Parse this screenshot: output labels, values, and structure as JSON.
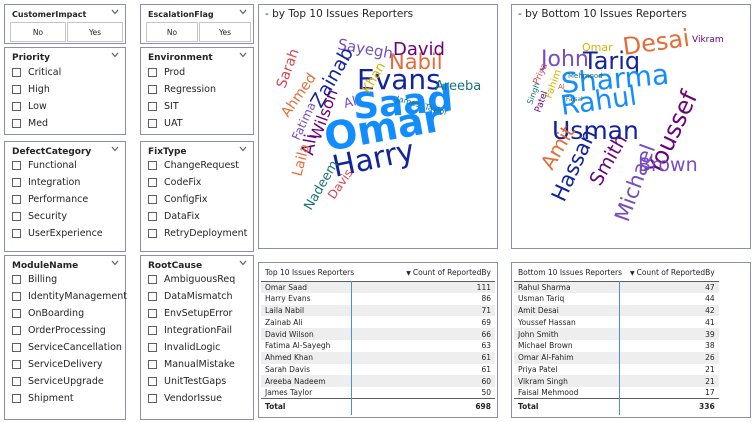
{
  "customer_impact": {
    "title": "CustomerImpact",
    "options": [
      "No",
      "Yes"
    ]
  },
  "escalation_flag": {
    "title": "EscalationFlag",
    "options": [
      "No",
      "Yes"
    ]
  },
  "priority": {
    "title": "Priority",
    "items": [
      "Critical",
      "High",
      "Low",
      "Med"
    ]
  },
  "environment": {
    "title": "Environment",
    "items": [
      "Prod",
      "Regression",
      "SIT",
      "UAT"
    ]
  },
  "defect_category": {
    "title": "DefectCategory",
    "items": [
      "Functional",
      "Integration",
      "Performance",
      "Security",
      "UserExperience"
    ]
  },
  "fix_type": {
    "title": "FixType",
    "items": [
      "ChangeRequest",
      "CodeFix",
      "ConfigFix",
      "DataFix",
      "RetryDeployment"
    ]
  },
  "module_name": {
    "title": "ModuleName",
    "items": [
      "Billing",
      "IdentityManagement",
      "OnBoarding",
      "OrderProcessing",
      "ServiceCancellation",
      "ServiceDelivery",
      "ServiceUpgrade",
      "Shipment"
    ]
  },
  "root_cause": {
    "title": "RootCause",
    "items": [
      "AmbiguousReq",
      "DataMismatch",
      "EnvSetupError",
      "IntegrationFail",
      "InvalidLogic",
      "ManualMistake",
      "UnitTestGaps",
      "VendorIssue"
    ]
  },
  "top_wordcloud": {
    "title": "- by Top 10 Issues Reporters",
    "words": [
      {
        "text": "Saad",
        "color": "#118DFF"
      },
      {
        "text": "Omar",
        "color": "#118DFF"
      },
      {
        "text": "Harry",
        "color": "#12239E"
      },
      {
        "text": "Evans",
        "color": "#12239E"
      },
      {
        "text": "Nabil",
        "color": "#E66C37"
      },
      {
        "text": "David",
        "color": "#6B007B"
      },
      {
        "text": "Sayegh",
        "color": "#744EC2"
      },
      {
        "text": "Zainab",
        "color": "#12239E"
      },
      {
        "text": "Sarah",
        "color": "#D64550"
      },
      {
        "text": "Ahmed",
        "color": "#E66C37"
      },
      {
        "text": "Wilson",
        "color": "#6B007B"
      },
      {
        "text": "Khan",
        "color": "#D9B300"
      },
      {
        "text": "Areeba",
        "color": "#197278"
      },
      {
        "text": "Al",
        "color": "#744EC2"
      },
      {
        "text": "James",
        "color": "#197278"
      },
      {
        "text": "Taylor",
        "color": "#197278"
      },
      {
        "text": "Fatima",
        "color": "#744EC2"
      },
      {
        "text": "Ali",
        "color": "#6B007B"
      },
      {
        "text": "Laila",
        "color": "#E66C37"
      },
      {
        "text": "Nadeem",
        "color": "#197278"
      },
      {
        "text": "Davis",
        "color": "#D64550"
      }
    ]
  },
  "bottom_wordcloud": {
    "title": "- by Bottom 10 Issues Reporters",
    "words": [
      {
        "text": "Desai",
        "color": "#E66C37"
      },
      {
        "text": "Omar",
        "color": "#D9B300"
      },
      {
        "text": "John",
        "color": "#744EC2"
      },
      {
        "text": "Tariq",
        "color": "#12239E"
      },
      {
        "text": "Vikram",
        "color": "#6B007B"
      },
      {
        "text": "Sharma",
        "color": "#118DFF"
      },
      {
        "text": "Rahul",
        "color": "#118DFF"
      },
      {
        "text": "Usman",
        "color": "#12239E"
      },
      {
        "text": "Youssef",
        "color": "#6B007B"
      },
      {
        "text": "Brown",
        "color": "#744EC2"
      },
      {
        "text": "Michael",
        "color": "#744EC2"
      },
      {
        "text": "Smith",
        "color": "#6B007B"
      },
      {
        "text": "Hassan",
        "color": "#12239E"
      },
      {
        "text": "Amit",
        "color": "#E66C37"
      },
      {
        "text": "Priya",
        "color": "#D64550"
      },
      {
        "text": "Fahim",
        "color": "#D9B300"
      },
      {
        "text": "Singh",
        "color": "#197278"
      },
      {
        "text": "Patel",
        "color": "#6B007B"
      },
      {
        "text": "Mehmood",
        "color": "#197278"
      },
      {
        "text": "Faisal",
        "color": "#197278"
      },
      {
        "text": "Al",
        "color": "#D64550"
      }
    ]
  },
  "top_table": {
    "col1": "Top 10 Issues Reporters",
    "col2": "Count of ReportedBy",
    "rows": [
      {
        "name": "Omar Saad",
        "count": "111"
      },
      {
        "name": "Harry Evans",
        "count": "86"
      },
      {
        "name": "Laila Nabil",
        "count": "71"
      },
      {
        "name": "Zainab Ali",
        "count": "69"
      },
      {
        "name": "David Wilson",
        "count": "66"
      },
      {
        "name": "Fatima Al-Sayegh",
        "count": "63"
      },
      {
        "name": "Ahmed Khan",
        "count": "61"
      },
      {
        "name": "Sarah Davis",
        "count": "61"
      },
      {
        "name": "Areeba Nadeem",
        "count": "60"
      },
      {
        "name": "James Taylor",
        "count": "50"
      }
    ],
    "total_label": "Total",
    "total_value": "698"
  },
  "bottom_table": {
    "col1": "Bottom 10 Issues Reporters",
    "col2": "Count of ReportedBy",
    "rows": [
      {
        "name": "Rahul Sharma",
        "count": "47"
      },
      {
        "name": "Usman Tariq",
        "count": "44"
      },
      {
        "name": "Amit Desai",
        "count": "42"
      },
      {
        "name": "Youssef Hassan",
        "count": "41"
      },
      {
        "name": "John Smith",
        "count": "39"
      },
      {
        "name": "Michael Brown",
        "count": "38"
      },
      {
        "name": "Omar Al-Fahim",
        "count": "26"
      },
      {
        "name": "Priya Patel",
        "count": "21"
      },
      {
        "name": "Vikram Singh",
        "count": "21"
      },
      {
        "name": "Faisal Mehmood",
        "count": "17"
      }
    ],
    "total_label": "Total",
    "total_value": "336"
  }
}
